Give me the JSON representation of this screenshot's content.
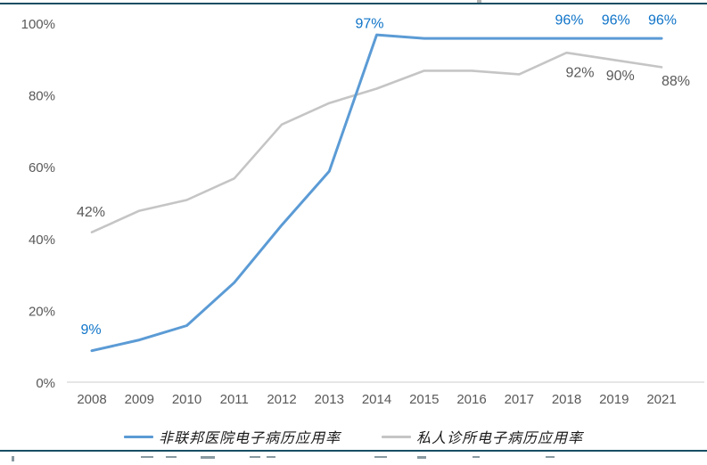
{
  "page": {
    "divider_color": "#164e63",
    "background": "#ffffff",
    "clipped_source_note": ""
  },
  "chart_data": {
    "type": "line",
    "title": "",
    "xlabel": "",
    "ylabel": "",
    "categories": [
      "2008",
      "2009",
      "2010",
      "2011",
      "2012",
      "2013",
      "2014",
      "2015",
      "2016",
      "2017",
      "2018",
      "2019",
      "2021"
    ],
    "series": [
      {
        "name": "非联邦医院电子病历应用率",
        "color": "#5b9bd5",
        "label_color": "#0f74c8",
        "values": [
          9,
          12,
          16,
          28,
          44,
          59,
          97,
          96,
          96,
          96,
          96,
          96,
          96
        ],
        "point_labels": [
          {
            "i": 0,
            "text": "9%",
            "dx": -1,
            "dy": -24
          },
          {
            "i": 6,
            "text": "97%",
            "dx": -8,
            "dy": -13
          },
          {
            "i": 10,
            "text": "96%",
            "dx": 3,
            "dy": -21
          },
          {
            "i": 11,
            "text": "96%",
            "dx": 2,
            "dy": -21
          },
          {
            "i": 12,
            "text": "96%",
            "dx": 1,
            "dy": -21
          }
        ]
      },
      {
        "name": "私人诊所电子病历应用率",
        "color": "#c5c5c5",
        "label_color": "#595959",
        "values": [
          42,
          48,
          51,
          57,
          72,
          78,
          82,
          87,
          87,
          86,
          92,
          90,
          88
        ],
        "point_labels": [
          {
            "i": 0,
            "text": "42%",
            "dx": -1,
            "dy": -23
          },
          {
            "i": 10,
            "text": "92%",
            "dx": 15,
            "dy": 22
          },
          {
            "i": 11,
            "text": "90%",
            "dx": 7,
            "dy": 17
          },
          {
            "i": 12,
            "text": "88%",
            "dx": 16,
            "dy": 15
          }
        ]
      }
    ],
    "y_ticks": [
      {
        "value": 0,
        "label": "0%"
      },
      {
        "value": 20,
        "label": "20%"
      },
      {
        "value": 40,
        "label": "40%"
      },
      {
        "value": 60,
        "label": "60%"
      },
      {
        "value": 80,
        "label": "80%"
      },
      {
        "value": 100,
        "label": "100%"
      }
    ],
    "ylim": [
      0,
      100
    ],
    "grid": false,
    "axis_line_color": "#d6d6d6",
    "tick_label_color": "#595959",
    "legend_position": "bottom"
  }
}
